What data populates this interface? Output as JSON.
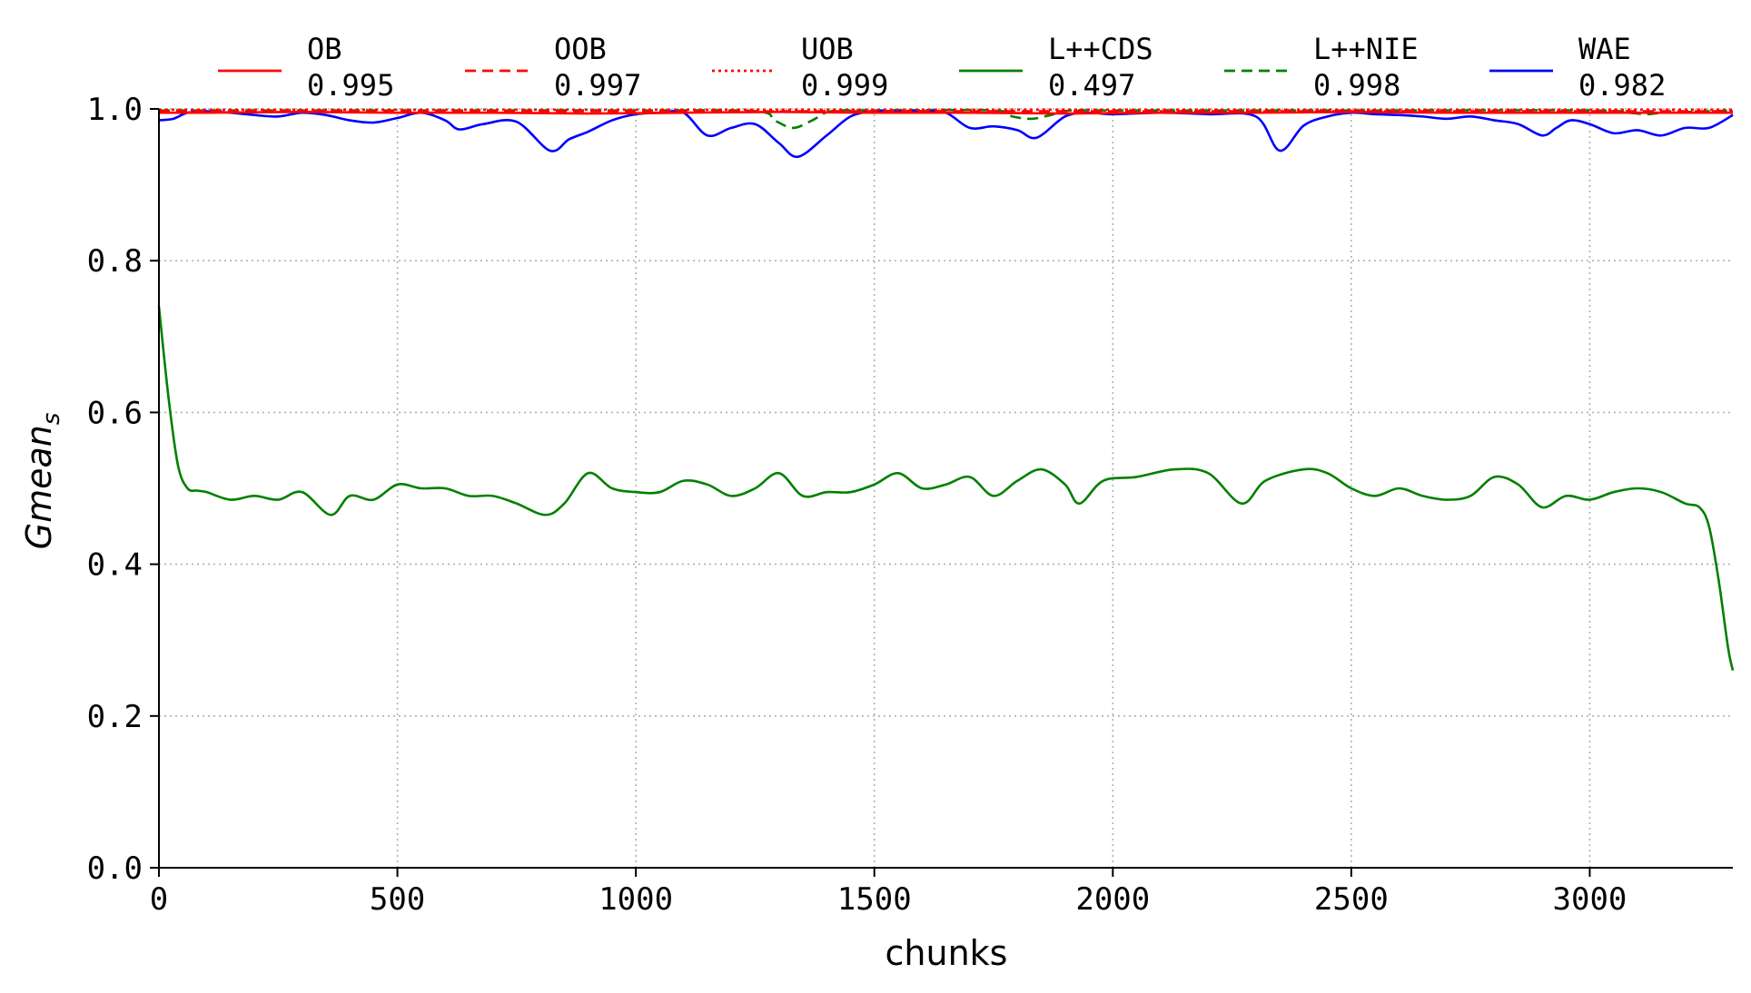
{
  "chart_data": {
    "type": "line",
    "xlabel": "chunks",
    "ylabel": "Gmean",
    "ylabel_subscript": "s",
    "xlim": [
      0,
      3300
    ],
    "ylim": [
      0.0,
      1.0
    ],
    "xticks": [
      "0",
      "500",
      "1000",
      "1500",
      "2000",
      "2500",
      "3000"
    ],
    "yticks": [
      "0.0",
      "0.2",
      "0.4",
      "0.6",
      "0.8",
      "1.0"
    ],
    "grid": true,
    "legend_placement": "top",
    "series": [
      {
        "name": "OB",
        "value": "0.995",
        "color": "#ff0000",
        "style": "solid",
        "x": [
          0,
          100,
          300,
          500,
          700,
          900,
          1100,
          1300,
          1500,
          1700,
          1900,
          2100,
          2300,
          2500,
          2700,
          2900,
          3100,
          3300
        ],
        "y": [
          0.995,
          0.995,
          0.996,
          0.995,
          0.995,
          0.994,
          0.995,
          0.996,
          0.995,
          0.995,
          0.994,
          0.995,
          0.995,
          0.996,
          0.995,
          0.995,
          0.995,
          0.995
        ]
      },
      {
        "name": "OOB",
        "value": "0.997",
        "color": "#ff0000",
        "style": "dashed",
        "x": [
          0,
          300,
          600,
          900,
          1200,
          1500,
          1800,
          2100,
          2400,
          2700,
          3000,
          3300
        ],
        "y": [
          0.997,
          0.997,
          0.997,
          0.997,
          0.997,
          0.997,
          0.997,
          0.997,
          0.997,
          0.997,
          0.997,
          0.997
        ]
      },
      {
        "name": "UOB",
        "value": "0.999",
        "color": "#ff0000",
        "style": "dotted",
        "x": [
          0,
          300,
          600,
          900,
          1200,
          1500,
          1800,
          2100,
          2400,
          2700,
          3000,
          3300
        ],
        "y": [
          0.999,
          0.999,
          0.999,
          0.999,
          0.999,
          0.999,
          0.999,
          0.999,
          0.999,
          0.999,
          0.999,
          0.999
        ]
      },
      {
        "name": "L++CDS",
        "value": "0.497",
        "color": "#008000",
        "style": "solid",
        "x": [
          0,
          20,
          40,
          60,
          80,
          100,
          150,
          200,
          250,
          300,
          360,
          400,
          450,
          500,
          550,
          600,
          650,
          700,
          750,
          810,
          850,
          900,
          950,
          1000,
          1050,
          1100,
          1150,
          1200,
          1250,
          1300,
          1350,
          1400,
          1450,
          1500,
          1550,
          1600,
          1650,
          1700,
          1750,
          1800,
          1850,
          1900,
          1930,
          1980,
          2050,
          2130,
          2200,
          2270,
          2320,
          2400,
          2450,
          2500,
          2550,
          2600,
          2650,
          2700,
          2750,
          2800,
          2850,
          2900,
          2950,
          3000,
          3050,
          3100,
          3150,
          3200,
          3230,
          3250,
          3270,
          3290,
          3300
        ],
        "y": [
          0.74,
          0.62,
          0.53,
          0.5,
          0.497,
          0.495,
          0.485,
          0.49,
          0.485,
          0.495,
          0.465,
          0.49,
          0.485,
          0.505,
          0.5,
          0.5,
          0.49,
          0.49,
          0.48,
          0.465,
          0.48,
          0.52,
          0.5,
          0.495,
          0.495,
          0.51,
          0.505,
          0.49,
          0.5,
          0.52,
          0.49,
          0.495,
          0.495,
          0.505,
          0.52,
          0.5,
          0.505,
          0.515,
          0.49,
          0.51,
          0.525,
          0.505,
          0.48,
          0.51,
          0.515,
          0.525,
          0.52,
          0.48,
          0.51,
          0.525,
          0.52,
          0.5,
          0.49,
          0.5,
          0.49,
          0.485,
          0.49,
          0.515,
          0.505,
          0.475,
          0.49,
          0.485,
          0.495,
          0.5,
          0.495,
          0.48,
          0.475,
          0.45,
          0.38,
          0.29,
          0.26
        ]
      },
      {
        "name": "L++NIE",
        "value": "0.998",
        "color": "#008000",
        "style": "dashed",
        "x": [
          0,
          500,
          1000,
          1250,
          1290,
          1330,
          1370,
          1410,
          1500,
          1750,
          1790,
          1830,
          1870,
          1910,
          2000,
          2500,
          3000,
          3080,
          3120,
          3160,
          3300
        ],
        "y": [
          0.998,
          0.998,
          0.998,
          0.997,
          0.985,
          0.975,
          0.985,
          0.997,
          0.998,
          0.998,
          0.99,
          0.987,
          0.992,
          0.998,
          0.998,
          0.998,
          0.998,
          0.995,
          0.993,
          0.995,
          0.998
        ]
      },
      {
        "name": "WAE",
        "value": "0.982",
        "color": "#0000ff",
        "style": "solid",
        "x": [
          0,
          30,
          60,
          100,
          150,
          200,
          250,
          300,
          350,
          400,
          450,
          500,
          550,
          600,
          630,
          680,
          750,
          820,
          860,
          900,
          950,
          1000,
          1050,
          1100,
          1150,
          1200,
          1250,
          1300,
          1340,
          1400,
          1450,
          1500,
          1550,
          1600,
          1650,
          1700,
          1750,
          1800,
          1840,
          1900,
          1950,
          2000,
          2100,
          2200,
          2300,
          2350,
          2400,
          2450,
          2500,
          2550,
          2600,
          2650,
          2700,
          2750,
          2800,
          2850,
          2900,
          2930,
          2960,
          3000,
          3050,
          3100,
          3150,
          3200,
          3250,
          3300
        ],
        "y": [
          0.985,
          0.987,
          0.995,
          0.997,
          0.995,
          0.992,
          0.99,
          0.995,
          0.992,
          0.985,
          0.982,
          0.988,
          0.995,
          0.985,
          0.973,
          0.98,
          0.983,
          0.945,
          0.96,
          0.97,
          0.985,
          0.993,
          0.995,
          0.995,
          0.965,
          0.975,
          0.98,
          0.955,
          0.937,
          0.965,
          0.99,
          0.997,
          0.997,
          0.997,
          0.995,
          0.975,
          0.977,
          0.972,
          0.962,
          0.99,
          0.995,
          0.993,
          0.995,
          0.993,
          0.99,
          0.945,
          0.978,
          0.99,
          0.995,
          0.993,
          0.992,
          0.99,
          0.987,
          0.99,
          0.985,
          0.98,
          0.965,
          0.975,
          0.985,
          0.98,
          0.968,
          0.972,
          0.965,
          0.975,
          0.975,
          0.992
        ]
      }
    ]
  }
}
